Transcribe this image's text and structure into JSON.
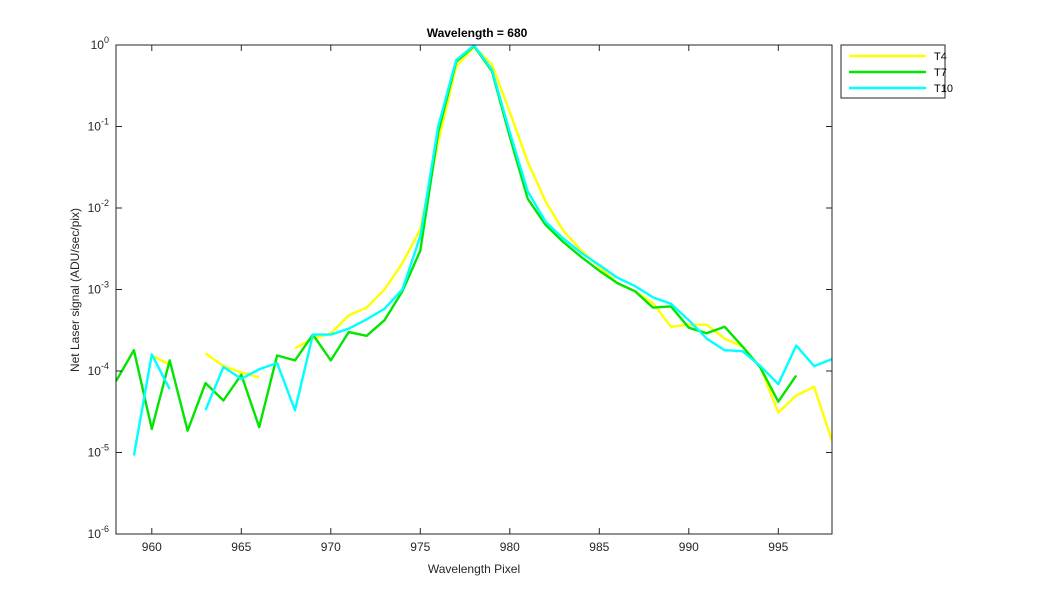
{
  "chart_data": {
    "type": "line",
    "title": "Wavelength = 680",
    "xlabel": "Wavelength Pixel",
    "ylabel": "Net Laser signal  (ADU/sec/pix)",
    "xlim": [
      958,
      998
    ],
    "ylim": [
      1e-06,
      1
    ],
    "yscale": "log",
    "x_ticks": [
      960,
      965,
      970,
      975,
      980,
      985,
      990,
      995
    ],
    "x_tick_labels": [
      "960",
      "965",
      "970",
      "975",
      "980",
      "985",
      "990",
      "995"
    ],
    "y_ticks": [
      {
        "value": 1e-06,
        "base": "10",
        "exp": "-6"
      },
      {
        "value": 1e-05,
        "base": "10",
        "exp": "-5"
      },
      {
        "value": 0.0001,
        "base": "10",
        "exp": "-4"
      },
      {
        "value": 0.001,
        "base": "10",
        "exp": "-3"
      },
      {
        "value": 0.01,
        "base": "10",
        "exp": "-2"
      },
      {
        "value": 0.1,
        "base": "10",
        "exp": "-1"
      },
      {
        "value": 1,
        "base": "10",
        "exp": "0"
      }
    ],
    "grid": false,
    "legend_position": "outside-top-right",
    "series": [
      {
        "name": "T4",
        "color": "#ffff00",
        "points": [
          [
            960,
            0.000155
          ],
          [
            961,
            0.00012
          ],
          null,
          [
            963,
            0.000165
          ],
          [
            964,
            0.000115
          ],
          [
            965,
            9.6e-05
          ],
          [
            966,
            8.3e-05
          ],
          null,
          [
            968,
            0.00019
          ],
          [
            969,
            0.00025
          ],
          [
            970,
            0.00029
          ],
          [
            971,
            0.00048
          ],
          [
            972,
            0.0006
          ],
          [
            973,
            0.001
          ],
          [
            974,
            0.0021
          ],
          [
            975,
            0.0055
          ],
          [
            976,
            0.065
          ],
          [
            977,
            0.54
          ],
          [
            978,
            0.95
          ],
          [
            979,
            0.58
          ],
          [
            980,
            0.15
          ],
          [
            981,
            0.037
          ],
          [
            982,
            0.012
          ],
          [
            983,
            0.0052
          ],
          [
            984,
            0.003
          ],
          [
            985,
            0.0019
          ],
          [
            986,
            0.0012
          ],
          [
            987,
            0.00095
          ],
          [
            988,
            0.00068
          ],
          [
            989,
            0.00035
          ],
          [
            990,
            0.00037
          ],
          [
            991,
            0.00037
          ],
          [
            992,
            0.00025
          ],
          [
            993,
            0.0002
          ],
          [
            994,
            0.00011
          ],
          [
            995,
            3.1e-05
          ],
          [
            996,
            5e-05
          ],
          [
            997,
            6.4e-05
          ],
          [
            998,
            1.4e-05
          ]
        ]
      },
      {
        "name": "T7",
        "color": "#00e600",
        "points": [
          [
            958,
            7.5e-05
          ],
          [
            959,
            0.00018
          ],
          [
            960,
            1.95e-05
          ],
          [
            961,
            0.000135
          ],
          [
            962,
            1.85e-05
          ],
          [
            963,
            7.1e-05
          ],
          [
            964,
            4.35e-05
          ],
          [
            965,
            9e-05
          ],
          [
            966,
            2.05e-05
          ],
          [
            967,
            0.000155
          ],
          [
            968,
            0.000135
          ],
          [
            969,
            0.00028
          ],
          [
            970,
            0.000135
          ],
          [
            971,
            0.0003
          ],
          [
            972,
            0.00027
          ],
          [
            973,
            0.00042
          ],
          [
            974,
            0.00095
          ],
          [
            975,
            0.003
          ],
          [
            976,
            0.085
          ],
          [
            977,
            0.62
          ],
          [
            978,
            0.97
          ],
          [
            979,
            0.48
          ],
          [
            980,
            0.075
          ],
          [
            981,
            0.013
          ],
          [
            982,
            0.0062
          ],
          [
            983,
            0.0038
          ],
          [
            984,
            0.0025
          ],
          [
            985,
            0.0017
          ],
          [
            986,
            0.0012
          ],
          [
            987,
            0.00095
          ],
          [
            988,
            0.0006
          ],
          [
            989,
            0.00062
          ],
          [
            990,
            0.00034
          ],
          [
            991,
            0.00029
          ],
          [
            992,
            0.00035
          ],
          [
            993,
            0.0002
          ],
          [
            994,
            0.00011
          ],
          [
            995,
            4.2e-05
          ],
          [
            996,
            8.8e-05
          ]
        ]
      },
      {
        "name": "T10",
        "color": "#00ffff",
        "points": [
          [
            959,
            9.2e-06
          ],
          [
            960,
            0.00016
          ],
          [
            961,
            6e-05
          ],
          null,
          [
            963,
            3.3e-05
          ],
          [
            964,
            0.000112
          ],
          [
            965,
            8e-05
          ],
          [
            966,
            0.000105
          ],
          [
            967,
            0.000125
          ],
          [
            968,
            3.3e-05
          ],
          [
            969,
            0.00028
          ],
          [
            970,
            0.00028
          ],
          [
            971,
            0.00033
          ],
          [
            972,
            0.00043
          ],
          [
            973,
            0.00058
          ],
          [
            974,
            0.001
          ],
          [
            975,
            0.0045
          ],
          [
            976,
            0.1
          ],
          [
            977,
            0.65
          ],
          [
            978,
            0.99
          ],
          [
            979,
            0.5
          ],
          [
            980,
            0.085
          ],
          [
            981,
            0.016
          ],
          [
            982,
            0.0068
          ],
          [
            983,
            0.0042
          ],
          [
            984,
            0.0028
          ],
          [
            985,
            0.002
          ],
          [
            986,
            0.0014
          ],
          [
            987,
            0.0011
          ],
          [
            988,
            0.0008
          ],
          [
            989,
            0.00067
          ],
          [
            990,
            0.00042
          ],
          [
            991,
            0.00025
          ],
          [
            992,
            0.00018
          ],
          [
            993,
            0.000175
          ],
          [
            994,
            0.000115
          ],
          [
            995,
            6.9e-05
          ],
          [
            996,
            0.000205
          ],
          [
            997,
            0.000115
          ],
          [
            998,
            0.00014
          ]
        ]
      }
    ]
  }
}
